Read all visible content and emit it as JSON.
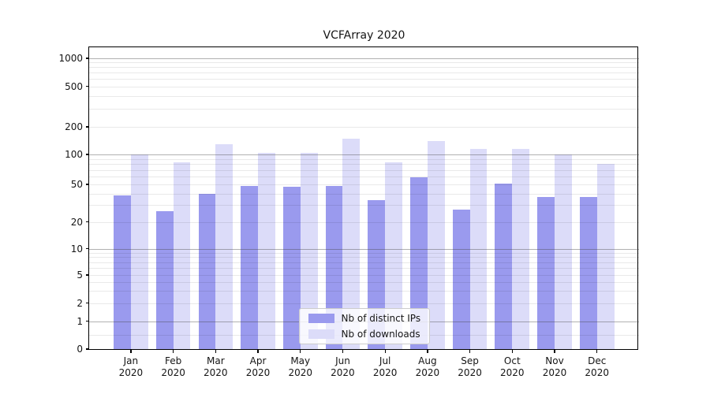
{
  "chart_data": {
    "type": "bar",
    "title": "VCFArray 2020",
    "categories": [
      "Jan",
      "Feb",
      "Mar",
      "Apr",
      "May",
      "Jun",
      "Jul",
      "Aug",
      "Sep",
      "Oct",
      "Nov",
      "Dec"
    ],
    "x_axis": {
      "tick_label_line2": "2020"
    },
    "series": [
      {
        "name": "Nb of distinct IPs",
        "color": "#9a9aee",
        "values": [
          38,
          26,
          40,
          48,
          47,
          48,
          34,
          59,
          27,
          51,
          37,
          37
        ]
      },
      {
        "name": "Nb of downloads",
        "color": "#dcdcf9",
        "values": [
          100,
          84,
          130,
          104,
          105,
          149,
          84,
          140,
          115,
          115,
          100,
          81
        ]
      }
    ],
    "y_axis": {
      "scale": "symlog",
      "ticks": [
        0,
        1,
        2,
        5,
        10,
        20,
        50,
        100,
        200,
        500,
        1000
      ],
      "range": [
        0,
        1300
      ]
    },
    "legend": {
      "position": "lower center"
    },
    "grid": true,
    "colors": {
      "major_grid": "#b0b0b0",
      "minor_grid": "#e9e9e9",
      "spine": "#000000",
      "background": "#ffffff"
    }
  }
}
